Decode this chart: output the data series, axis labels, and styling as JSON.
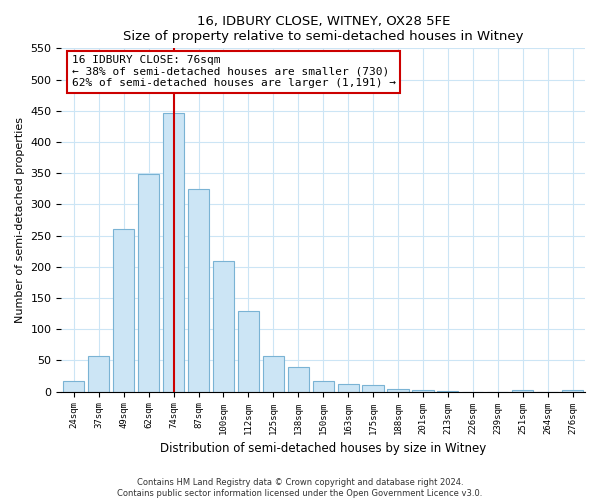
{
  "title": "16, IDBURY CLOSE, WITNEY, OX28 5FE",
  "subtitle": "Size of property relative to semi-detached houses in Witney",
  "xlabel": "Distribution of semi-detached houses by size in Witney",
  "ylabel": "Number of semi-detached properties",
  "bar_labels": [
    "24sqm",
    "37sqm",
    "49sqm",
    "62sqm",
    "74sqm",
    "87sqm",
    "100sqm",
    "112sqm",
    "125sqm",
    "138sqm",
    "150sqm",
    "163sqm",
    "175sqm",
    "188sqm",
    "201sqm",
    "213sqm",
    "226sqm",
    "239sqm",
    "251sqm",
    "264sqm",
    "276sqm"
  ],
  "bar_values": [
    17,
    57,
    260,
    348,
    447,
    325,
    210,
    130,
    57,
    40,
    17,
    13,
    10,
    5,
    3,
    1,
    0,
    0,
    3,
    0,
    3
  ],
  "bar_color": "#cce5f5",
  "bar_edge_color": "#7ab3d4",
  "marker_index": 4,
  "marker_label": "16 IDBURY CLOSE: 76sqm",
  "smaller_pct": "38%",
  "smaller_count": "730",
  "larger_pct": "62%",
  "larger_count": "1,191",
  "marker_line_color": "#cc0000",
  "ylim": [
    0,
    550
  ],
  "yticks": [
    0,
    50,
    100,
    150,
    200,
    250,
    300,
    350,
    400,
    450,
    500,
    550
  ],
  "footnote": "Contains HM Land Registry data © Crown copyright and database right 2024.\nContains public sector information licensed under the Open Government Licence v3.0.",
  "annotation_box_color": "#ffffff",
  "annotation_box_edge": "#cc0000",
  "figsize": [
    6.0,
    5.0
  ],
  "dpi": 100
}
